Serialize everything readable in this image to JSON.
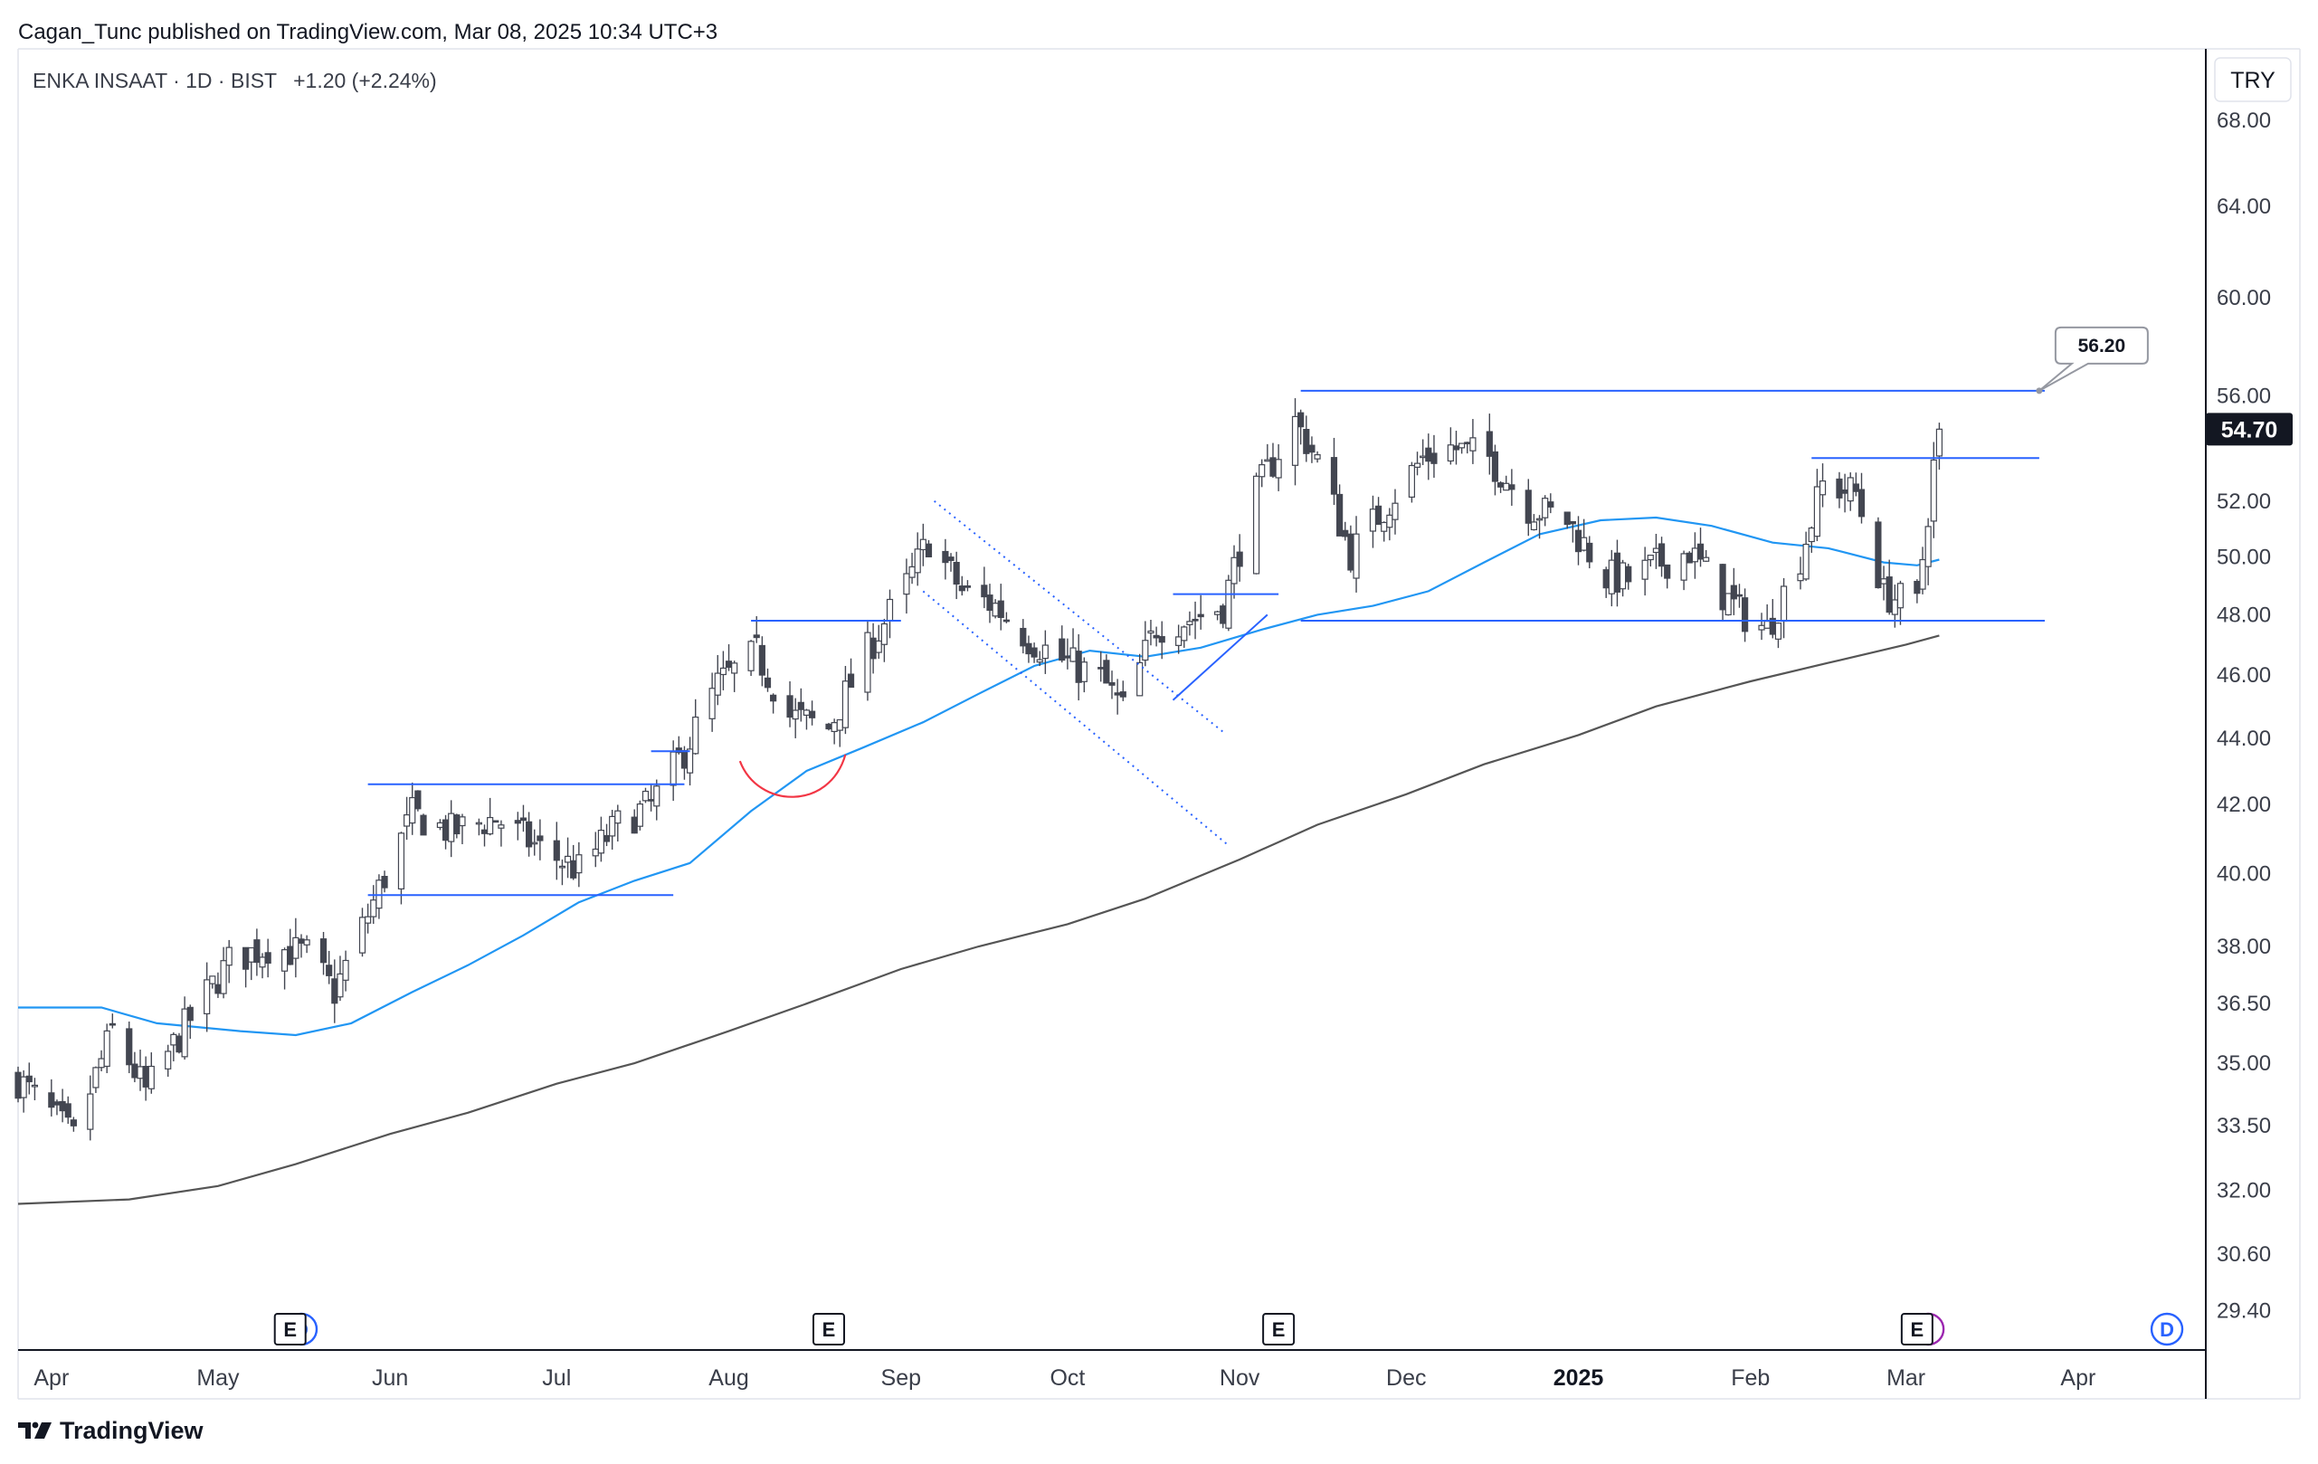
{
  "header": {
    "published_text": "Cagan_Tunc published on TradingView.com, Mar 08, 2025 10:34 UTC+3"
  },
  "legend": {
    "symbol_text": "ENKA INSAAT · 1D · BIST",
    "change_text": "+1.20 (+2.24%)",
    "change_color": "#131722"
  },
  "currency_label": "TRY",
  "branding": {
    "logo_icon": "tradingview-logo-icon",
    "text": "TradingView"
  },
  "colors": {
    "candle_up_body": "#ffffff",
    "candle_down_body": "#434651",
    "candle_outline": "#434651",
    "ma_fast": "#2196f3",
    "ma_slow": "#555555",
    "drawing_line": "#2962ff",
    "rounding_arc": "#f23645",
    "last_price_bg": "#131722",
    "earnings_marker": "#131722",
    "dividend_marker": "#2962ff",
    "split_marker": "#9c27b0"
  },
  "chart_data": {
    "type": "candlestick",
    "symbol": "ENKA INSAAT",
    "interval": "1D",
    "exchange": "BIST",
    "last_price": "54.70",
    "y_scale": "log",
    "y_ticks": [
      "68.00",
      "64.00",
      "60.00",
      "56.00",
      "52.00",
      "50.00",
      "48.00",
      "46.00",
      "44.00",
      "42.00",
      "40.00",
      "38.00",
      "36.50",
      "35.00",
      "33.50",
      "32.00",
      "30.60",
      "29.40"
    ],
    "x_ticks": [
      {
        "label": "Apr",
        "date": "2024-04-01",
        "bold": false
      },
      {
        "label": "May",
        "date": "2024-05-01",
        "bold": false
      },
      {
        "label": "Jun",
        "date": "2024-06-01",
        "bold": false
      },
      {
        "label": "Jul",
        "date": "2024-07-01",
        "bold": false
      },
      {
        "label": "Aug",
        "date": "2024-08-01",
        "bold": false
      },
      {
        "label": "Sep",
        "date": "2024-09-01",
        "bold": false
      },
      {
        "label": "Oct",
        "date": "2024-10-01",
        "bold": false
      },
      {
        "label": "Nov",
        "date": "2024-11-01",
        "bold": false
      },
      {
        "label": "Dec",
        "date": "2024-12-01",
        "bold": false
      },
      {
        "label": "2025",
        "date": "2025-01-01",
        "bold": true
      },
      {
        "label": "Feb",
        "date": "2025-02-01",
        "bold": false
      },
      {
        "label": "Mar",
        "date": "2025-03-01",
        "bold": false
      },
      {
        "label": "Apr",
        "date": "2025-04-01",
        "bold": false
      }
    ],
    "x_range": [
      "2024-03-26",
      "2025-04-24"
    ],
    "y_range": [
      28.6,
      71.5
    ],
    "price_path": [
      [
        "2024-03-26",
        34.6
      ],
      [
        "2024-04-05",
        33.2
      ],
      [
        "2024-04-12",
        35.8
      ],
      [
        "2024-04-18",
        34.3
      ],
      [
        "2024-04-25",
        35.9
      ],
      [
        "2024-05-03",
        37.6
      ],
      [
        "2024-05-10",
        38.0
      ],
      [
        "2024-05-17",
        37.8
      ],
      [
        "2024-05-22",
        36.8
      ],
      [
        "2024-05-29",
        39.2
      ],
      [
        "2024-06-05",
        41.7
      ],
      [
        "2024-06-12",
        41.2
      ],
      [
        "2024-06-20",
        41.6
      ],
      [
        "2024-06-28",
        40.7
      ],
      [
        "2024-07-05",
        40.1
      ],
      [
        "2024-07-12",
        41.4
      ],
      [
        "2024-07-18",
        42.0
      ],
      [
        "2024-07-24",
        43.6
      ],
      [
        "2024-07-30",
        45.7
      ],
      [
        "2024-08-06",
        46.7
      ],
      [
        "2024-08-12",
        44.7
      ],
      [
        "2024-08-19",
        44.3
      ],
      [
        "2024-08-26",
        46.8
      ],
      [
        "2024-09-02",
        49.0
      ],
      [
        "2024-09-06",
        50.6
      ],
      [
        "2024-09-12",
        48.8
      ],
      [
        "2024-09-18",
        48.3
      ],
      [
        "2024-09-24",
        47.2
      ],
      [
        "2024-09-30",
        46.5
      ],
      [
        "2024-10-07",
        45.9
      ],
      [
        "2024-10-11",
        44.9
      ],
      [
        "2024-10-17",
        47.6
      ],
      [
        "2024-10-24",
        47.9
      ],
      [
        "2024-10-29",
        48.3
      ],
      [
        "2024-11-04",
        52.3
      ],
      [
        "2024-11-11",
        55.0
      ],
      [
        "2024-11-15",
        53.5
      ],
      [
        "2024-11-21",
        50.1
      ],
      [
        "2024-11-28",
        52.0
      ],
      [
        "2024-12-04",
        53.6
      ],
      [
        "2024-12-09",
        54.0
      ],
      [
        "2024-12-16",
        53.6
      ],
      [
        "2024-12-23",
        51.8
      ],
      [
        "2024-12-30",
        51.3
      ],
      [
        "2025-01-06",
        49.3
      ],
      [
        "2025-01-10",
        49.2
      ],
      [
        "2025-01-16",
        49.8
      ],
      [
        "2025-01-21",
        50.2
      ],
      [
        "2025-01-27",
        48.7
      ],
      [
        "2025-01-30",
        48.1
      ],
      [
        "2025-02-04",
        47.5
      ],
      [
        "2025-02-10",
        50.0
      ],
      [
        "2025-02-14",
        52.6
      ],
      [
        "2025-02-20",
        52.3
      ],
      [
        "2025-02-25",
        48.7
      ],
      [
        "2025-03-03",
        48.3
      ],
      [
        "2025-03-06",
        53.3
      ],
      [
        "2025-03-07",
        54.7
      ]
    ],
    "ma_fast": [
      [
        "2024-03-26",
        36.4
      ],
      [
        "2024-04-10",
        36.4
      ],
      [
        "2024-04-20",
        36.0
      ],
      [
        "2024-05-05",
        35.8
      ],
      [
        "2024-05-15",
        35.7
      ],
      [
        "2024-05-25",
        36.0
      ],
      [
        "2024-06-05",
        36.8
      ],
      [
        "2024-06-15",
        37.5
      ],
      [
        "2024-06-25",
        38.3
      ],
      [
        "2024-07-05",
        39.2
      ],
      [
        "2024-07-15",
        39.8
      ],
      [
        "2024-07-25",
        40.3
      ],
      [
        "2024-08-05",
        41.8
      ],
      [
        "2024-08-15",
        43.0
      ],
      [
        "2024-08-25",
        43.7
      ],
      [
        "2024-09-05",
        44.5
      ],
      [
        "2024-09-15",
        45.4
      ],
      [
        "2024-09-25",
        46.3
      ],
      [
        "2024-10-05",
        46.8
      ],
      [
        "2024-10-15",
        46.6
      ],
      [
        "2024-10-25",
        46.9
      ],
      [
        "2024-11-05",
        47.5
      ],
      [
        "2024-11-15",
        48.0
      ],
      [
        "2024-11-25",
        48.3
      ],
      [
        "2024-12-05",
        48.8
      ],
      [
        "2024-12-15",
        49.8
      ],
      [
        "2024-12-25",
        50.8
      ],
      [
        "2025-01-05",
        51.3
      ],
      [
        "2025-01-15",
        51.4
      ],
      [
        "2025-01-25",
        51.1
      ],
      [
        "2025-02-05",
        50.5
      ],
      [
        "2025-02-15",
        50.3
      ],
      [
        "2025-02-25",
        49.8
      ],
      [
        "2025-03-03",
        49.7
      ],
      [
        "2025-03-07",
        49.9
      ]
    ],
    "ma_slow": [
      [
        "2024-03-26",
        31.7
      ],
      [
        "2024-04-15",
        31.8
      ],
      [
        "2024-05-01",
        32.1
      ],
      [
        "2024-05-15",
        32.6
      ],
      [
        "2024-06-01",
        33.3
      ],
      [
        "2024-06-15",
        33.8
      ],
      [
        "2024-07-01",
        34.5
      ],
      [
        "2024-07-15",
        35.0
      ],
      [
        "2024-08-01",
        35.8
      ],
      [
        "2024-08-15",
        36.5
      ],
      [
        "2024-09-01",
        37.4
      ],
      [
        "2024-09-15",
        38.0
      ],
      [
        "2024-10-01",
        38.6
      ],
      [
        "2024-10-15",
        39.3
      ],
      [
        "2024-11-01",
        40.4
      ],
      [
        "2024-11-15",
        41.4
      ],
      [
        "2024-12-01",
        42.3
      ],
      [
        "2024-12-15",
        43.2
      ],
      [
        "2025-01-01",
        44.1
      ],
      [
        "2025-01-15",
        45.0
      ],
      [
        "2025-02-01",
        45.8
      ],
      [
        "2025-02-15",
        46.4
      ],
      [
        "2025-03-01",
        47.0
      ],
      [
        "2025-03-07",
        47.3
      ]
    ],
    "drawings": {
      "horizontal_lines": [
        {
          "name": "jun-range-top",
          "from": "2024-05-28",
          "to": "2024-07-24",
          "price": 42.6
        },
        {
          "name": "jun-range-bottom",
          "from": "2024-05-28",
          "to": "2024-07-22",
          "price": 39.4
        },
        {
          "name": "jul-breakout-box",
          "from": "2024-07-18",
          "to": "2024-07-25",
          "price": 43.6
        },
        {
          "name": "aug-resistance",
          "from": "2024-08-05",
          "to": "2024-09-01",
          "price": 47.8
        },
        {
          "name": "oct-resistance",
          "from": "2024-10-20",
          "to": "2024-11-08",
          "price": 48.7
        },
        {
          "name": "major-resistance",
          "from": "2024-11-12",
          "to": "2025-03-26",
          "price": 56.2
        },
        {
          "name": "range-support",
          "from": "2024-11-12",
          "to": "2025-03-26",
          "price": 47.8
        },
        {
          "name": "feb-resistance",
          "from": "2025-02-12",
          "to": "2025-03-25",
          "price": 53.6
        }
      ],
      "channel_lines": [
        {
          "name": "channel-upper",
          "from": [
            "2024-09-07",
            52.0
          ],
          "to": [
            "2024-10-29",
            44.2
          ]
        },
        {
          "name": "channel-lower",
          "from": [
            "2024-09-05",
            48.8
          ],
          "to": [
            "2024-10-30",
            40.8
          ]
        }
      ],
      "trend_lines": [
        {
          "name": "oct-rising-trendline",
          "from": [
            "2024-10-20",
            45.2
          ],
          "to": [
            "2024-11-06",
            48.0
          ]
        }
      ],
      "rounding_bottom": {
        "from": [
          "2024-08-03",
          43.3
        ],
        "bottom": [
          "2024-08-11",
          42.4
        ],
        "to": [
          "2024-08-22",
          43.5
        ]
      },
      "price_callout": {
        "label": "56.20",
        "date": "2025-03-25",
        "price": 56.2
      }
    },
    "event_markers": [
      {
        "type": "earnings",
        "label": "E",
        "date": "2024-05-14"
      },
      {
        "type": "dividend",
        "label": "D",
        "date": "2024-05-16"
      },
      {
        "type": "earnings",
        "label": "E",
        "date": "2024-08-19"
      },
      {
        "type": "earnings",
        "label": "E",
        "date": "2024-11-08"
      },
      {
        "type": "earnings",
        "label": "E",
        "date": "2025-03-03"
      },
      {
        "type": "split",
        "label": "",
        "date": "2025-03-05"
      },
      {
        "type": "dividend",
        "label": "D",
        "date": "2025-04-17"
      }
    ]
  }
}
